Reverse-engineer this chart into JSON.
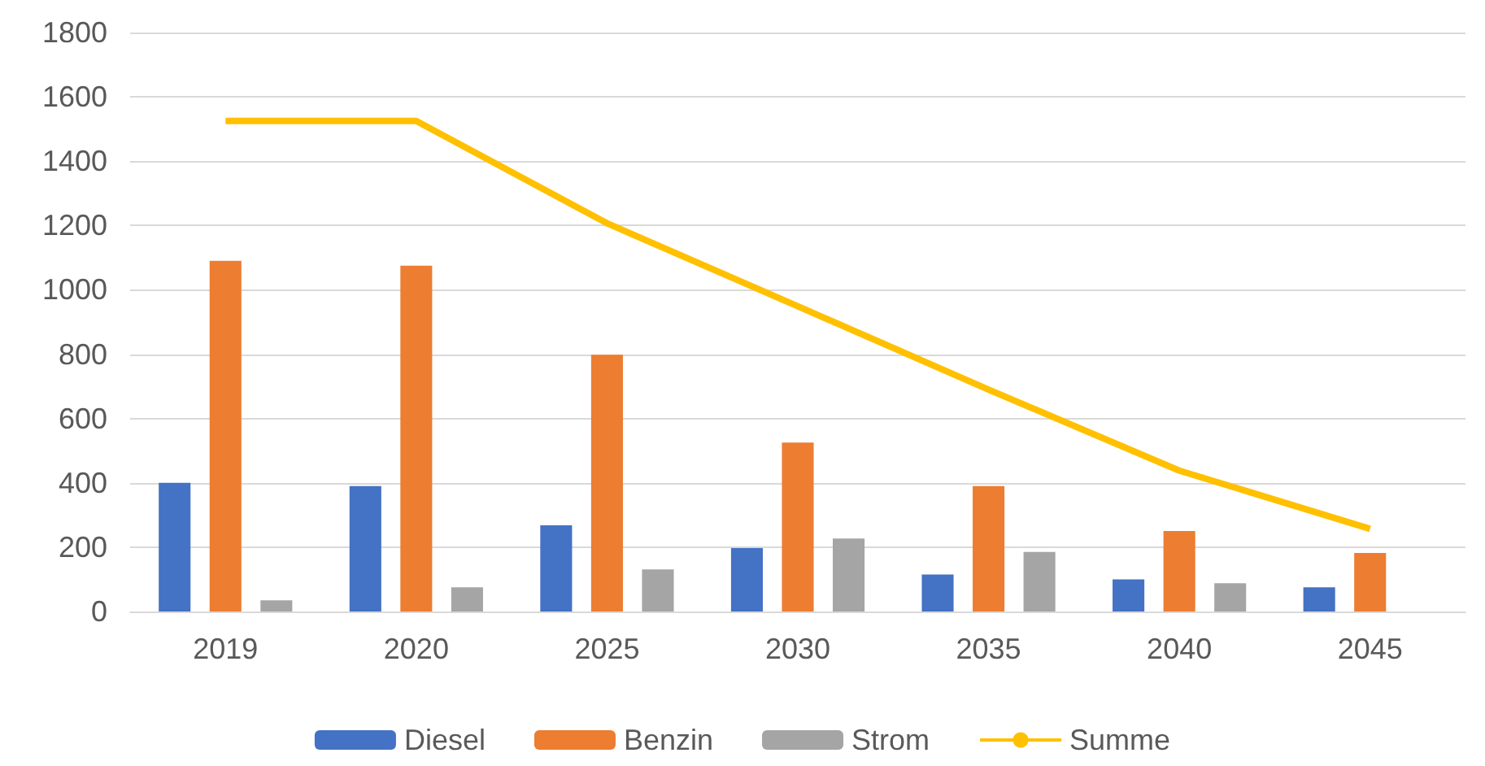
{
  "chart_data": {
    "type": "bar",
    "categories": [
      "2019",
      "2020",
      "2025",
      "2030",
      "2035",
      "2040",
      "2045"
    ],
    "series": [
      {
        "name": "Diesel",
        "color": "#4472c4",
        "values": [
          400,
          390,
          268,
          197,
          115,
          100,
          75
        ]
      },
      {
        "name": "Benzin",
        "color": "#ed7d31",
        "values": [
          1090,
          1075,
          798,
          525,
          390,
          250,
          182
        ]
      },
      {
        "name": "Strom",
        "color": "#a5a5a5",
        "values": [
          35,
          75,
          131,
          227,
          185,
          88,
          null
        ]
      },
      {
        "name": "Summe",
        "type": "line",
        "color": "#ffc000",
        "marker": "none",
        "values": [
          1525,
          1525,
          1207,
          949,
          690,
          438,
          257
        ]
      }
    ],
    "ylim": [
      0,
      1800
    ],
    "yticks": [
      0,
      200,
      400,
      600,
      800,
      1000,
      1200,
      1400,
      1600,
      1800
    ],
    "grid": "y",
    "legend": "bottom"
  }
}
